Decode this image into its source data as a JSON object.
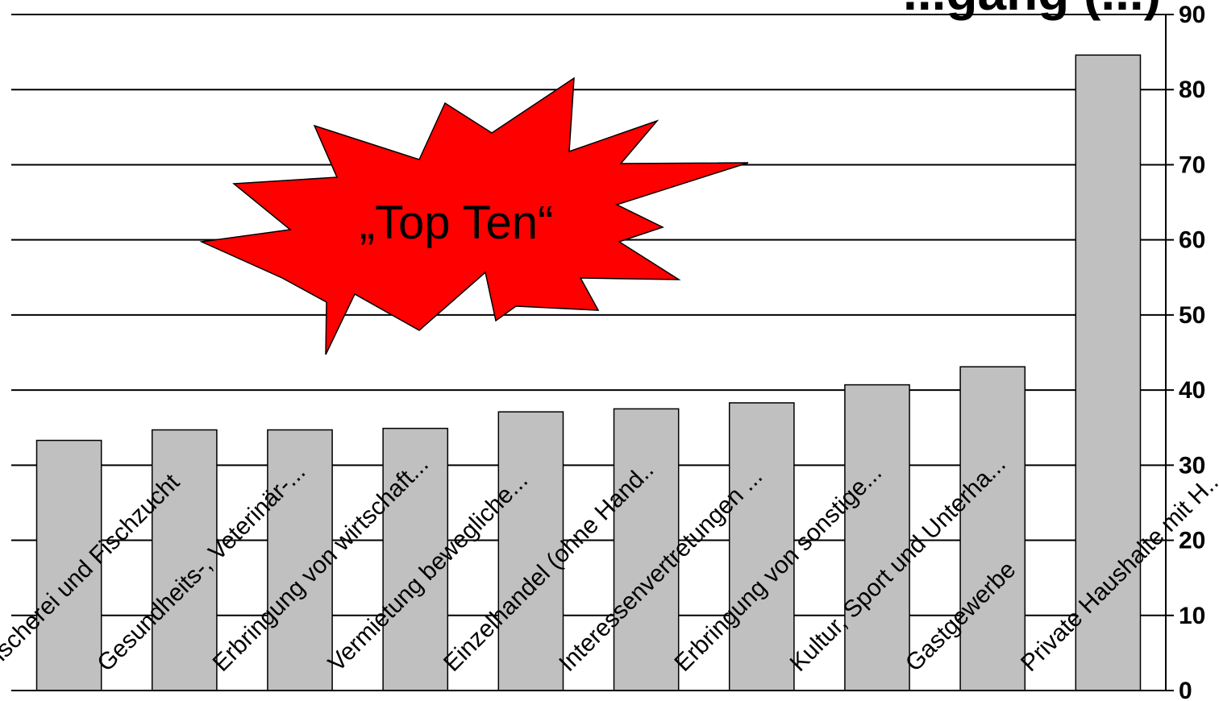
{
  "chart_data": {
    "type": "bar",
    "title": "...gang (...)",
    "categories": [
      "Fischerei und Fischzucht",
      "Gesundheits-, Veterinär-...",
      "Erbringung von wirtschaft...",
      "Vermietung bewegliche...",
      "Einzelhandel (ohne Hand..",
      "Interessenvertretungen ...",
      "Erbringung von sonstige...",
      "Kultur, Sport und Unterha...",
      "Gastgewerbe",
      "Private Haushalte mit H..."
    ],
    "values": [
      33.3,
      34.7,
      34.7,
      34.9,
      37.1,
      37.5,
      38.3,
      40.7,
      43.1,
      84.6
    ],
    "ylim": [
      0,
      90
    ],
    "yticks": [
      "0",
      "10",
      "20",
      "30",
      "40",
      "50",
      "60",
      "70",
      "80",
      "90"
    ],
    "y_axis_position": "right",
    "grid": true,
    "bar_color": "#c0c0c0",
    "annotation": {
      "text": "„Top Ten“",
      "shape": "explosion-starburst",
      "fill": "#ff0000"
    }
  }
}
